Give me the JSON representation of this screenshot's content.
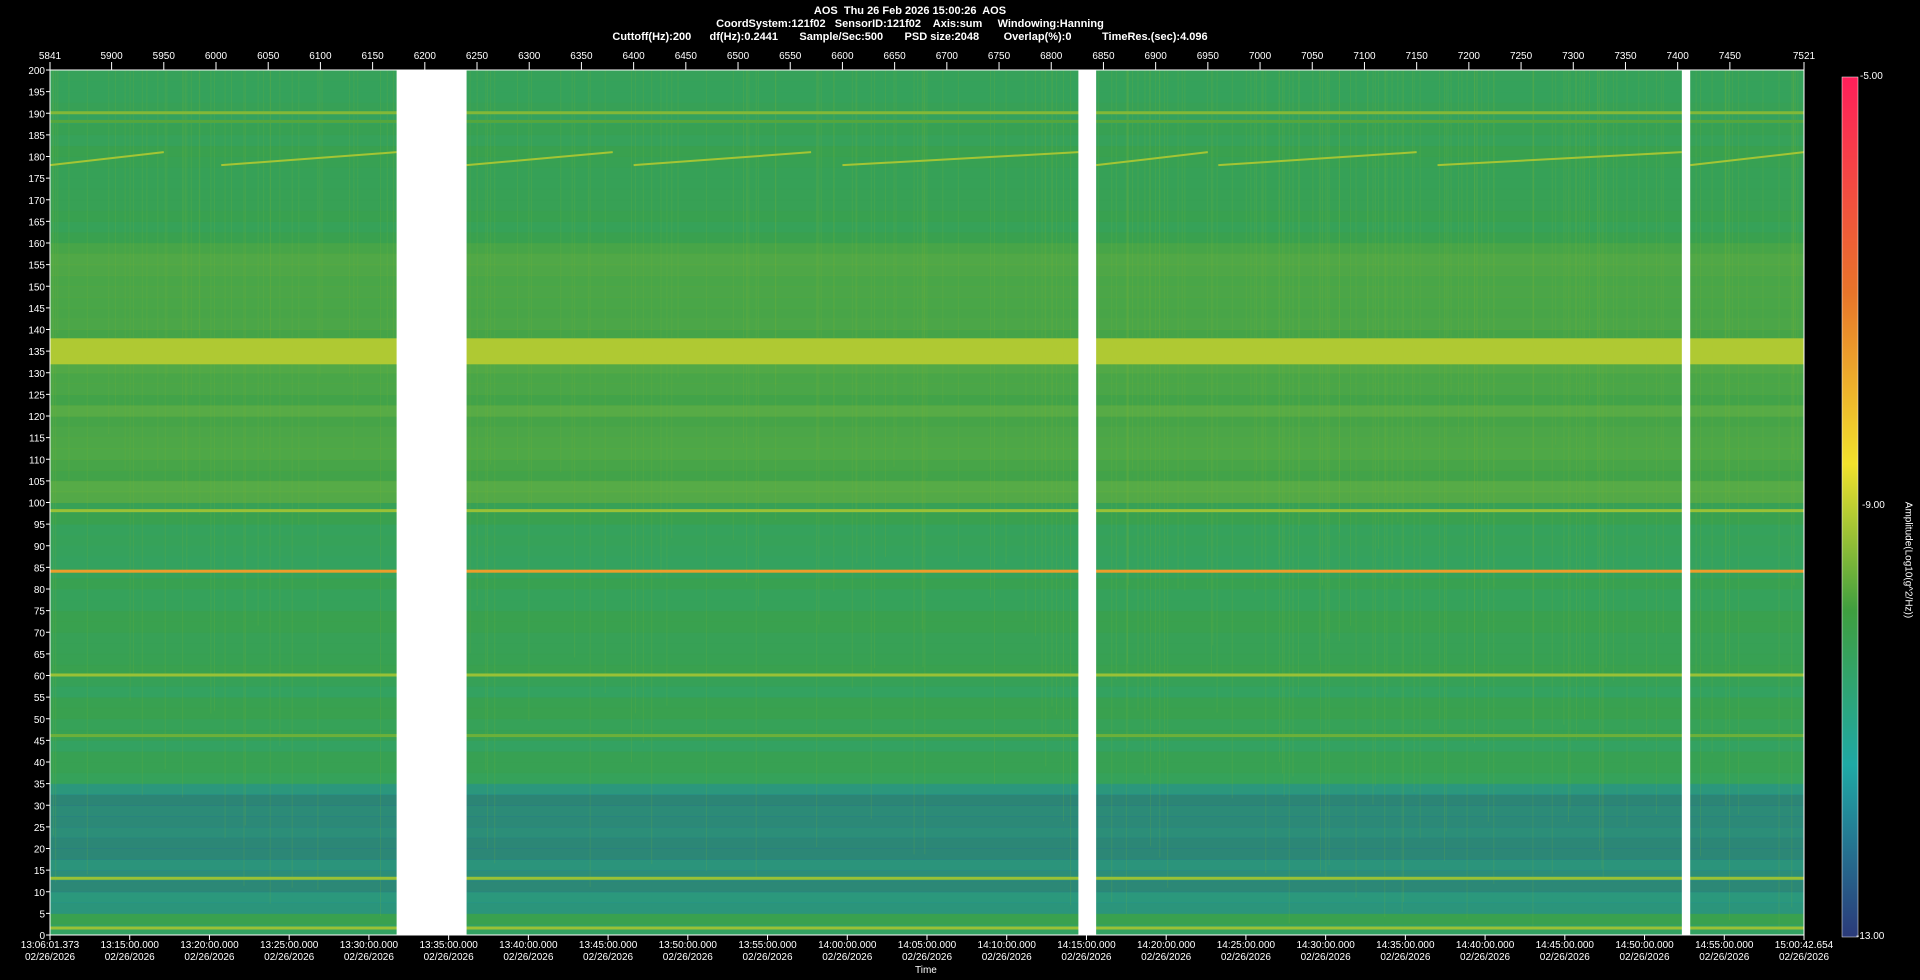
{
  "header": {
    "line1": "AOS  Thu 26 Feb 2026 15:00:26  AOS",
    "line2": "CoordSystem:121f02   SensorID:121f02    Axis:sum     Windowing:Hanning",
    "line3": "Cuttoff(Hz):200      df(Hz):0.2441       Sample/Sec:500       PSD size:2048        Overlap(%):0          TimeRes.(sec):4.096"
  },
  "chart_data": {
    "type": "heatmap",
    "top_axis_ticks": [
      "5841",
      "5900",
      "5950",
      "6000",
      "6050",
      "6100",
      "6150",
      "6200",
      "6250",
      "6300",
      "6350",
      "6400",
      "6450",
      "6500",
      "6550",
      "6600",
      "6650",
      "6700",
      "6750",
      "6800",
      "6850",
      "6900",
      "6950",
      "7000",
      "7050",
      "7100",
      "7150",
      "7200",
      "7250",
      "7300",
      "7350",
      "7400",
      "7450",
      "7521"
    ],
    "top_axis_range": [
      5841,
      7521
    ],
    "y_ticks": [
      200,
      195,
      190,
      185,
      180,
      175,
      170,
      165,
      160,
      155,
      150,
      145,
      140,
      135,
      130,
      125,
      120,
      115,
      110,
      105,
      100,
      95,
      90,
      85,
      80,
      75,
      70,
      65,
      60,
      55,
      50,
      45,
      40,
      35,
      30,
      25,
      20,
      15,
      10,
      5,
      0
    ],
    "ylim": [
      0,
      200
    ],
    "x_ticks": [
      {
        "time": "13:06:01.373",
        "date": "02/26/2026"
      },
      {
        "time": "13:15:00.000",
        "date": "02/26/2026"
      },
      {
        "time": "13:20:00.000",
        "date": "02/26/2026"
      },
      {
        "time": "13:25:00.000",
        "date": "02/26/2026"
      },
      {
        "time": "13:30:00.000",
        "date": "02/26/2026"
      },
      {
        "time": "13:35:00.000",
        "date": "02/26/2026"
      },
      {
        "time": "13:40:00.000",
        "date": "02/26/2026"
      },
      {
        "time": "13:45:00.000",
        "date": "02/26/2026"
      },
      {
        "time": "13:50:00.000",
        "date": "02/26/2026"
      },
      {
        "time": "13:55:00.000",
        "date": "02/26/2026"
      },
      {
        "time": "14:00:00.000",
        "date": "02/26/2026"
      },
      {
        "time": "14:05:00.000",
        "date": "02/26/2026"
      },
      {
        "time": "14:10:00.000",
        "date": "02/26/2026"
      },
      {
        "time": "14:15:00.000",
        "date": "02/26/2026"
      },
      {
        "time": "14:20:00.000",
        "date": "02/26/2026"
      },
      {
        "time": "14:25:00.000",
        "date": "02/26/2026"
      },
      {
        "time": "14:30:00.000",
        "date": "02/26/2026"
      },
      {
        "time": "14:35:00.000",
        "date": "02/26/2026"
      },
      {
        "time": "14:40:00.000",
        "date": "02/26/2026"
      },
      {
        "time": "14:45:00.000",
        "date": "02/26/2026"
      },
      {
        "time": "14:50:00.000",
        "date": "02/26/2026"
      },
      {
        "time": "14:55:00.000",
        "date": "02/26/2026"
      },
      {
        "time": "15:00:42.654",
        "date": "02/26/2026"
      }
    ],
    "xlabel": "Time",
    "colorbar": {
      "label": "Amplitude(Log10(g^2/Hz))",
      "range": [
        -13,
        -5
      ],
      "tick_labels": [
        "-5.00",
        "-9.00",
        "-13.00"
      ],
      "colors": [
        "#ff1f5a",
        "#e8742a",
        "#f2e22c",
        "#3f9f3f",
        "#1fa9a5",
        "#2b3a7a"
      ]
    },
    "data_gaps": [
      [
        6173,
        6240
      ],
      [
        6826,
        6843
      ],
      [
        7404,
        7412
      ]
    ],
    "bands": [
      {
        "freq": 190,
        "level": -9.2
      },
      {
        "freq": 188,
        "level": -9.6
      },
      {
        "freq": 137.5,
        "level": -8.8
      },
      {
        "freq": 98,
        "level": -9.0
      },
      {
        "freq": 84,
        "level": -7.2
      },
      {
        "freq": 60,
        "level": -9.0
      },
      {
        "freq": 46,
        "level": -9.4
      },
      {
        "freq": 13,
        "level": -9.0
      },
      {
        "freq": 1.5,
        "level": -9.0
      }
    ],
    "tracking_line_hz": [
      178,
      181
    ],
    "background_level": -10.2
  }
}
